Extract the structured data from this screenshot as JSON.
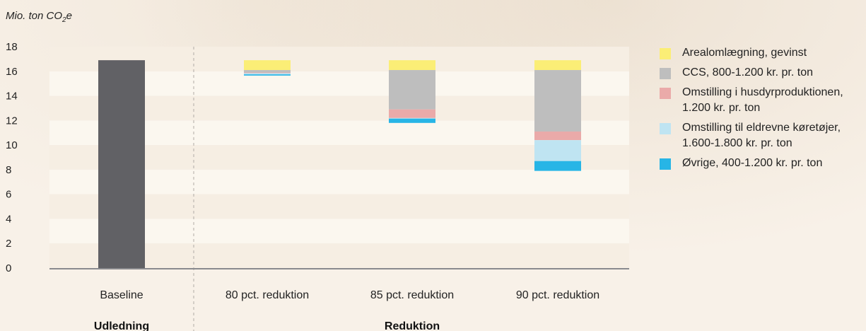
{
  "chart_data": {
    "type": "bar",
    "stacked": true,
    "ylabel_prefix": "Mio. ton CO",
    "ylabel_sub": "2",
    "ylabel_suffix": "e",
    "ylim": [
      0,
      18
    ],
    "yticks": [
      "0",
      "2",
      "4",
      "6",
      "8",
      "10",
      "12",
      "14",
      "16",
      "18"
    ],
    "categories": [
      "Baseline",
      "80 pct. reduktion",
      "85 pct. reduktion",
      "90 pct. reduktion"
    ],
    "groups": [
      {
        "label": "Udledning",
        "categories": [
          "Baseline"
        ]
      },
      {
        "label": "Reduktion",
        "categories": [
          "80 pct. reduktion",
          "85 pct. reduktion",
          "90 pct. reduktion"
        ]
      }
    ],
    "baseline": {
      "category": "Baseline",
      "value": 16.9,
      "color": "#616165"
    },
    "series": [
      {
        "name": "Arealomlægning, gevinst",
        "color": "#fbee76",
        "segments": [
          [
            16.9,
            16.1
          ],
          [
            16.9,
            16.1
          ],
          [
            16.9,
            16.1
          ]
        ]
      },
      {
        "name": "CCS, 800-1.200 kr. pr. ton",
        "color": "#bebebe",
        "segments": [
          [
            16.1,
            15.9
          ],
          [
            16.1,
            12.9
          ],
          [
            16.1,
            11.1
          ]
        ]
      },
      {
        "name": "Omstilling i husdyrproduktionen, 1.200 kr. pr. ton",
        "color": "#eaaaa9",
        "segments": [
          [
            15.9,
            15.85
          ],
          [
            12.9,
            12.2
          ],
          [
            11.1,
            10.4
          ]
        ]
      },
      {
        "name": "Omstilling til eldrevne køretøjer, 1.600-1.800 kr. pr. ton",
        "color": "#bfe4f2",
        "segments": [
          [
            15.85,
            15.75
          ],
          [
            12.2,
            12.15
          ],
          [
            10.4,
            8.7
          ]
        ]
      },
      {
        "name": "Øvrige, 400-1.200 kr. pr. ton",
        "color": "#27b5e6",
        "segments": [
          [
            15.75,
            15.65
          ],
          [
            12.15,
            11.8
          ],
          [
            8.7,
            7.9
          ]
        ]
      }
    ],
    "legend": {
      "position": "right",
      "items": [
        {
          "lines": [
            "Arealomlægning, gevinst"
          ],
          "color": "#fbee76"
        },
        {
          "lines": [
            "CCS, 800-1.200 kr. pr. ton"
          ],
          "color": "#bebebe"
        },
        {
          "lines": [
            "Omstilling i husdyrproduktionen,",
            "1.200 kr. pr. ton"
          ],
          "color": "#eaaaa9"
        },
        {
          "lines": [
            "Omstilling til eldrevne køretøjer,",
            "1.600-1.800 kr. pr. ton"
          ],
          "color": "#bfe4f2"
        },
        {
          "lines": [
            "Øvrige, 400-1.200 kr. pr. ton"
          ],
          "color": "#27b5e6"
        }
      ]
    },
    "grid": "alternating bands",
    "divider": "dashed line between Baseline and reductions"
  }
}
